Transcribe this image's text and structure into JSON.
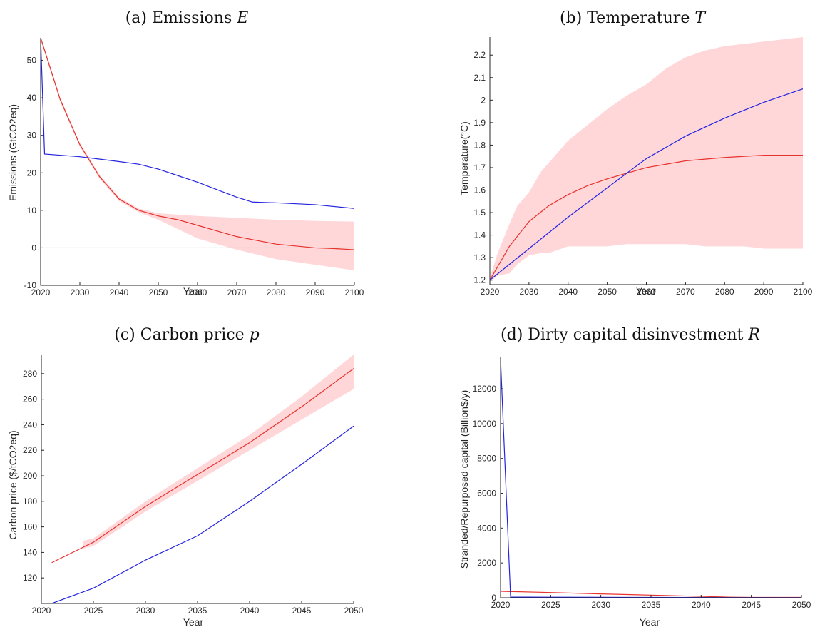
{
  "colors": {
    "red_series": "#e8322d",
    "blue_series": "#2424e0",
    "band_fill": "#ffd7d9",
    "zero_line": "#cccccc"
  },
  "chart_data": [
    {
      "type": "line",
      "title_prefix": "(a) Emissions ",
      "title_symbol": "E",
      "xlabel": "Year",
      "ylabel": "Emissions (GtCO2eq)",
      "xlim": [
        2020,
        2100
      ],
      "ylim": [
        -10,
        56
      ],
      "xticks": [
        2020,
        2030,
        2040,
        2050,
        2060,
        2070,
        2080,
        2090,
        2100
      ],
      "yticks": [
        -10,
        0,
        10,
        20,
        30,
        40,
        50
      ],
      "zero_line": true,
      "band": {
        "x": [
          2020,
          2025,
          2030,
          2035,
          2040,
          2045,
          2050,
          2060,
          2070,
          2080,
          2090,
          2100
        ],
        "lower": [
          55.5,
          39,
          27,
          18.5,
          12.5,
          9.5,
          7.5,
          2.5,
          -0.5,
          -3,
          -4.5,
          -6
        ],
        "upper": [
          56.5,
          40,
          28,
          19.5,
          13.5,
          10.5,
          9.2,
          8.5,
          8,
          7.5,
          7.2,
          7
        ]
      },
      "series": [
        {
          "color_key": "red_series",
          "x": [
            2020,
            2025,
            2030,
            2035,
            2040,
            2045,
            2050,
            2055,
            2060,
            2065,
            2070,
            2075,
            2080,
            2085,
            2090,
            2095,
            2100
          ],
          "y": [
            56,
            39.5,
            27.5,
            19,
            13,
            10,
            8.5,
            7.5,
            6,
            4.5,
            3,
            2,
            1,
            0.5,
            0,
            -0.2,
            -0.5
          ]
        },
        {
          "color_key": "blue_series",
          "x": [
            2020,
            2021,
            2030,
            2040,
            2045,
            2050,
            2060,
            2070,
            2074,
            2080,
            2090,
            2100
          ],
          "y": [
            56,
            25,
            24.3,
            23,
            22.3,
            21,
            17.5,
            13.5,
            12.2,
            12,
            11.5,
            10.5
          ]
        }
      ]
    },
    {
      "type": "line",
      "title_prefix": "(b) Temperature ",
      "title_symbol": "T",
      "xlabel": "Year",
      "ylabel": "Temperature(°C)",
      "xlim": [
        2020,
        2100
      ],
      "ylim": [
        1.18,
        2.28
      ],
      "xticks": [
        2020,
        2030,
        2040,
        2050,
        2060,
        2070,
        2080,
        2090,
        2100
      ],
      "yticks": [
        1.2,
        1.3,
        1.4,
        1.5,
        1.6,
        1.7,
        1.8,
        1.9,
        2,
        2.1,
        2.2
      ],
      "band": {
        "x": [
          2020,
          2022,
          2025,
          2027,
          2030,
          2033,
          2035,
          2040,
          2045,
          2050,
          2055,
          2060,
          2065,
          2070,
          2075,
          2080,
          2085,
          2090,
          2095,
          2100
        ],
        "lower": [
          1.19,
          1.22,
          1.23,
          1.27,
          1.31,
          1.32,
          1.32,
          1.35,
          1.35,
          1.35,
          1.36,
          1.36,
          1.36,
          1.36,
          1.35,
          1.35,
          1.35,
          1.34,
          1.34,
          1.34
        ],
        "upper": [
          1.21,
          1.32,
          1.45,
          1.53,
          1.59,
          1.68,
          1.72,
          1.82,
          1.89,
          1.96,
          2.02,
          2.07,
          2.14,
          2.19,
          2.22,
          2.24,
          2.25,
          2.26,
          2.27,
          2.28
        ]
      },
      "series": [
        {
          "color_key": "red_series",
          "x": [
            2020,
            2025,
            2030,
            2035,
            2040,
            2045,
            2050,
            2055,
            2060,
            2065,
            2070,
            2080,
            2090,
            2100
          ],
          "y": [
            1.2,
            1.35,
            1.46,
            1.53,
            1.58,
            1.62,
            1.65,
            1.675,
            1.7,
            1.715,
            1.73,
            1.745,
            1.755,
            1.755
          ]
        },
        {
          "color_key": "blue_series",
          "x": [
            2020,
            2030,
            2040,
            2050,
            2060,
            2070,
            2080,
            2090,
            2100
          ],
          "y": [
            1.2,
            1.34,
            1.48,
            1.61,
            1.74,
            1.84,
            1.92,
            1.99,
            2.05
          ]
        }
      ]
    },
    {
      "type": "line",
      "title_prefix": "(c) Carbon price ",
      "title_symbol": "p",
      "xlabel": "Year",
      "ylabel": "Carbon price ($/tCO2eq)",
      "xlim": [
        2020,
        2050
      ],
      "ylim": [
        100,
        295
      ],
      "xticks": [
        2020,
        2025,
        2030,
        2035,
        2040,
        2045,
        2050
      ],
      "yticks": [
        120,
        140,
        160,
        180,
        200,
        220,
        240,
        260,
        280
      ],
      "band": {
        "x": [
          2024,
          2025,
          2030,
          2035,
          2040,
          2045,
          2050
        ],
        "lower": [
          143,
          145,
          172,
          196,
          220,
          244,
          268
        ],
        "upper": [
          149,
          151,
          180,
          206,
          232,
          262,
          295
        ]
      },
      "series": [
        {
          "color_key": "red_series",
          "x": [
            2021,
            2025,
            2030,
            2035,
            2040,
            2045,
            2050
          ],
          "y": [
            132,
            148,
            176,
            201,
            226,
            254,
            284
          ]
        },
        {
          "color_key": "blue_series",
          "x": [
            2021,
            2025,
            2030,
            2035,
            2040,
            2045,
            2050
          ],
          "y": [
            100,
            112,
            134,
            153,
            180,
            209,
            239
          ]
        }
      ]
    },
    {
      "type": "line",
      "title_prefix": "(d) Dirty capital disinvestment ",
      "title_symbol": "R",
      "xlabel": "Year",
      "ylabel": "Stranded/Repurposed capital (Billion$/y)",
      "xlim": [
        2020,
        2050
      ],
      "ylim": [
        0,
        13800
      ],
      "xticks": [
        2020,
        2025,
        2030,
        2035,
        2040,
        2045,
        2050
      ],
      "yticks": [
        0,
        2000,
        4000,
        6000,
        8000,
        10000,
        12000
      ],
      "series": [
        {
          "color_key": "red_series",
          "x": [
            2020,
            2025,
            2030,
            2035,
            2040,
            2043,
            2045,
            2050
          ],
          "y": [
            370,
            300,
            220,
            150,
            80,
            30,
            20,
            20
          ]
        },
        {
          "color_key": "blue_series",
          "x": [
            2020,
            2021,
            2025,
            2030,
            2035,
            2040,
            2045,
            2050
          ],
          "y": [
            13700,
            40,
            30,
            25,
            20,
            15,
            10,
            5
          ]
        }
      ]
    }
  ]
}
